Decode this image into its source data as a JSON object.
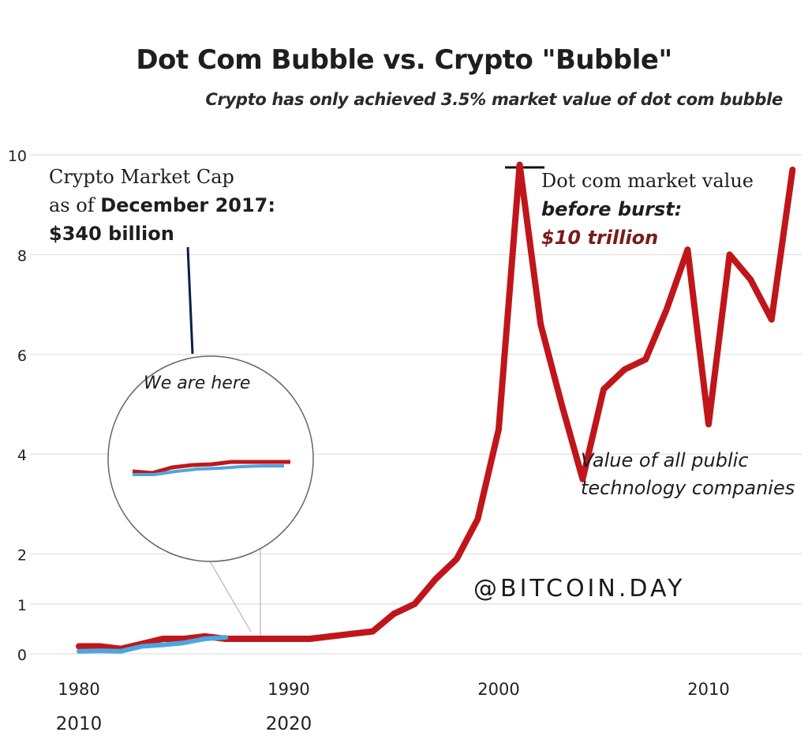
{
  "chart_data": {
    "type": "line",
    "title": "Dot Com Bubble vs. Crypto \"Bubble\"",
    "subtitle": "Crypto has only achieved 3.5% market value of dot com bubble",
    "ylim": [
      0,
      10
    ],
    "y_ticks": [
      "0",
      "1",
      "2",
      "4",
      "6",
      "8",
      "10"
    ],
    "x_ticks_row1": [
      "1980",
      "1990",
      "2000",
      "2010"
    ],
    "x_ticks_row2": [
      "2010",
      "2020"
    ],
    "grid": true,
    "series": [
      {
        "name": "Value of all public technology companies",
        "color": "#c0161b",
        "x": [
          1980,
          1981,
          1982,
          1983,
          1984,
          1985,
          1986,
          1987,
          1988,
          1989,
          1990,
          1991,
          1992,
          1993,
          1994,
          1995,
          1996,
          1997,
          1998,
          1999,
          2000,
          2001,
          2002,
          2003,
          2004,
          2005,
          2006,
          2007,
          2008,
          2009,
          2010,
          2011,
          2012,
          2013,
          2014
        ],
        "y": [
          0.15,
          0.15,
          0.1,
          0.2,
          0.3,
          0.3,
          0.35,
          0.3,
          0.3,
          0.3,
          0.3,
          0.3,
          0.35,
          0.4,
          0.45,
          0.8,
          1.0,
          1.5,
          1.9,
          2.7,
          4.5,
          9.8,
          6.6,
          5.0,
          3.5,
          5.3,
          5.7,
          5.9,
          6.9,
          8.1,
          4.6,
          8.0,
          7.5,
          6.7,
          9.7
        ]
      },
      {
        "name": "Crypto Market Cap",
        "color": "#4aa6e0",
        "x": [
          2010,
          2011,
          2012,
          2013,
          2014,
          2015,
          2016,
          2017
        ],
        "y": [
          0.05,
          0.06,
          0.05,
          0.15,
          0.18,
          0.22,
          0.3,
          0.33
        ]
      }
    ],
    "annotations": {
      "crypto_line1": "Crypto Market Cap",
      "crypto_line2_a": "as of ",
      "crypto_line2_b": "December 2017:",
      "crypto_line3": "$340 billion",
      "dotcom_line1": "Dot com market value",
      "dotcom_line2": "before burst:",
      "dotcom_line3": "$10 trillion",
      "tech_line1": "Value of all public",
      "tech_line2": "technology companies",
      "zoom_label": "We are here"
    },
    "watermark": "@BITCOIN.DAY"
  }
}
